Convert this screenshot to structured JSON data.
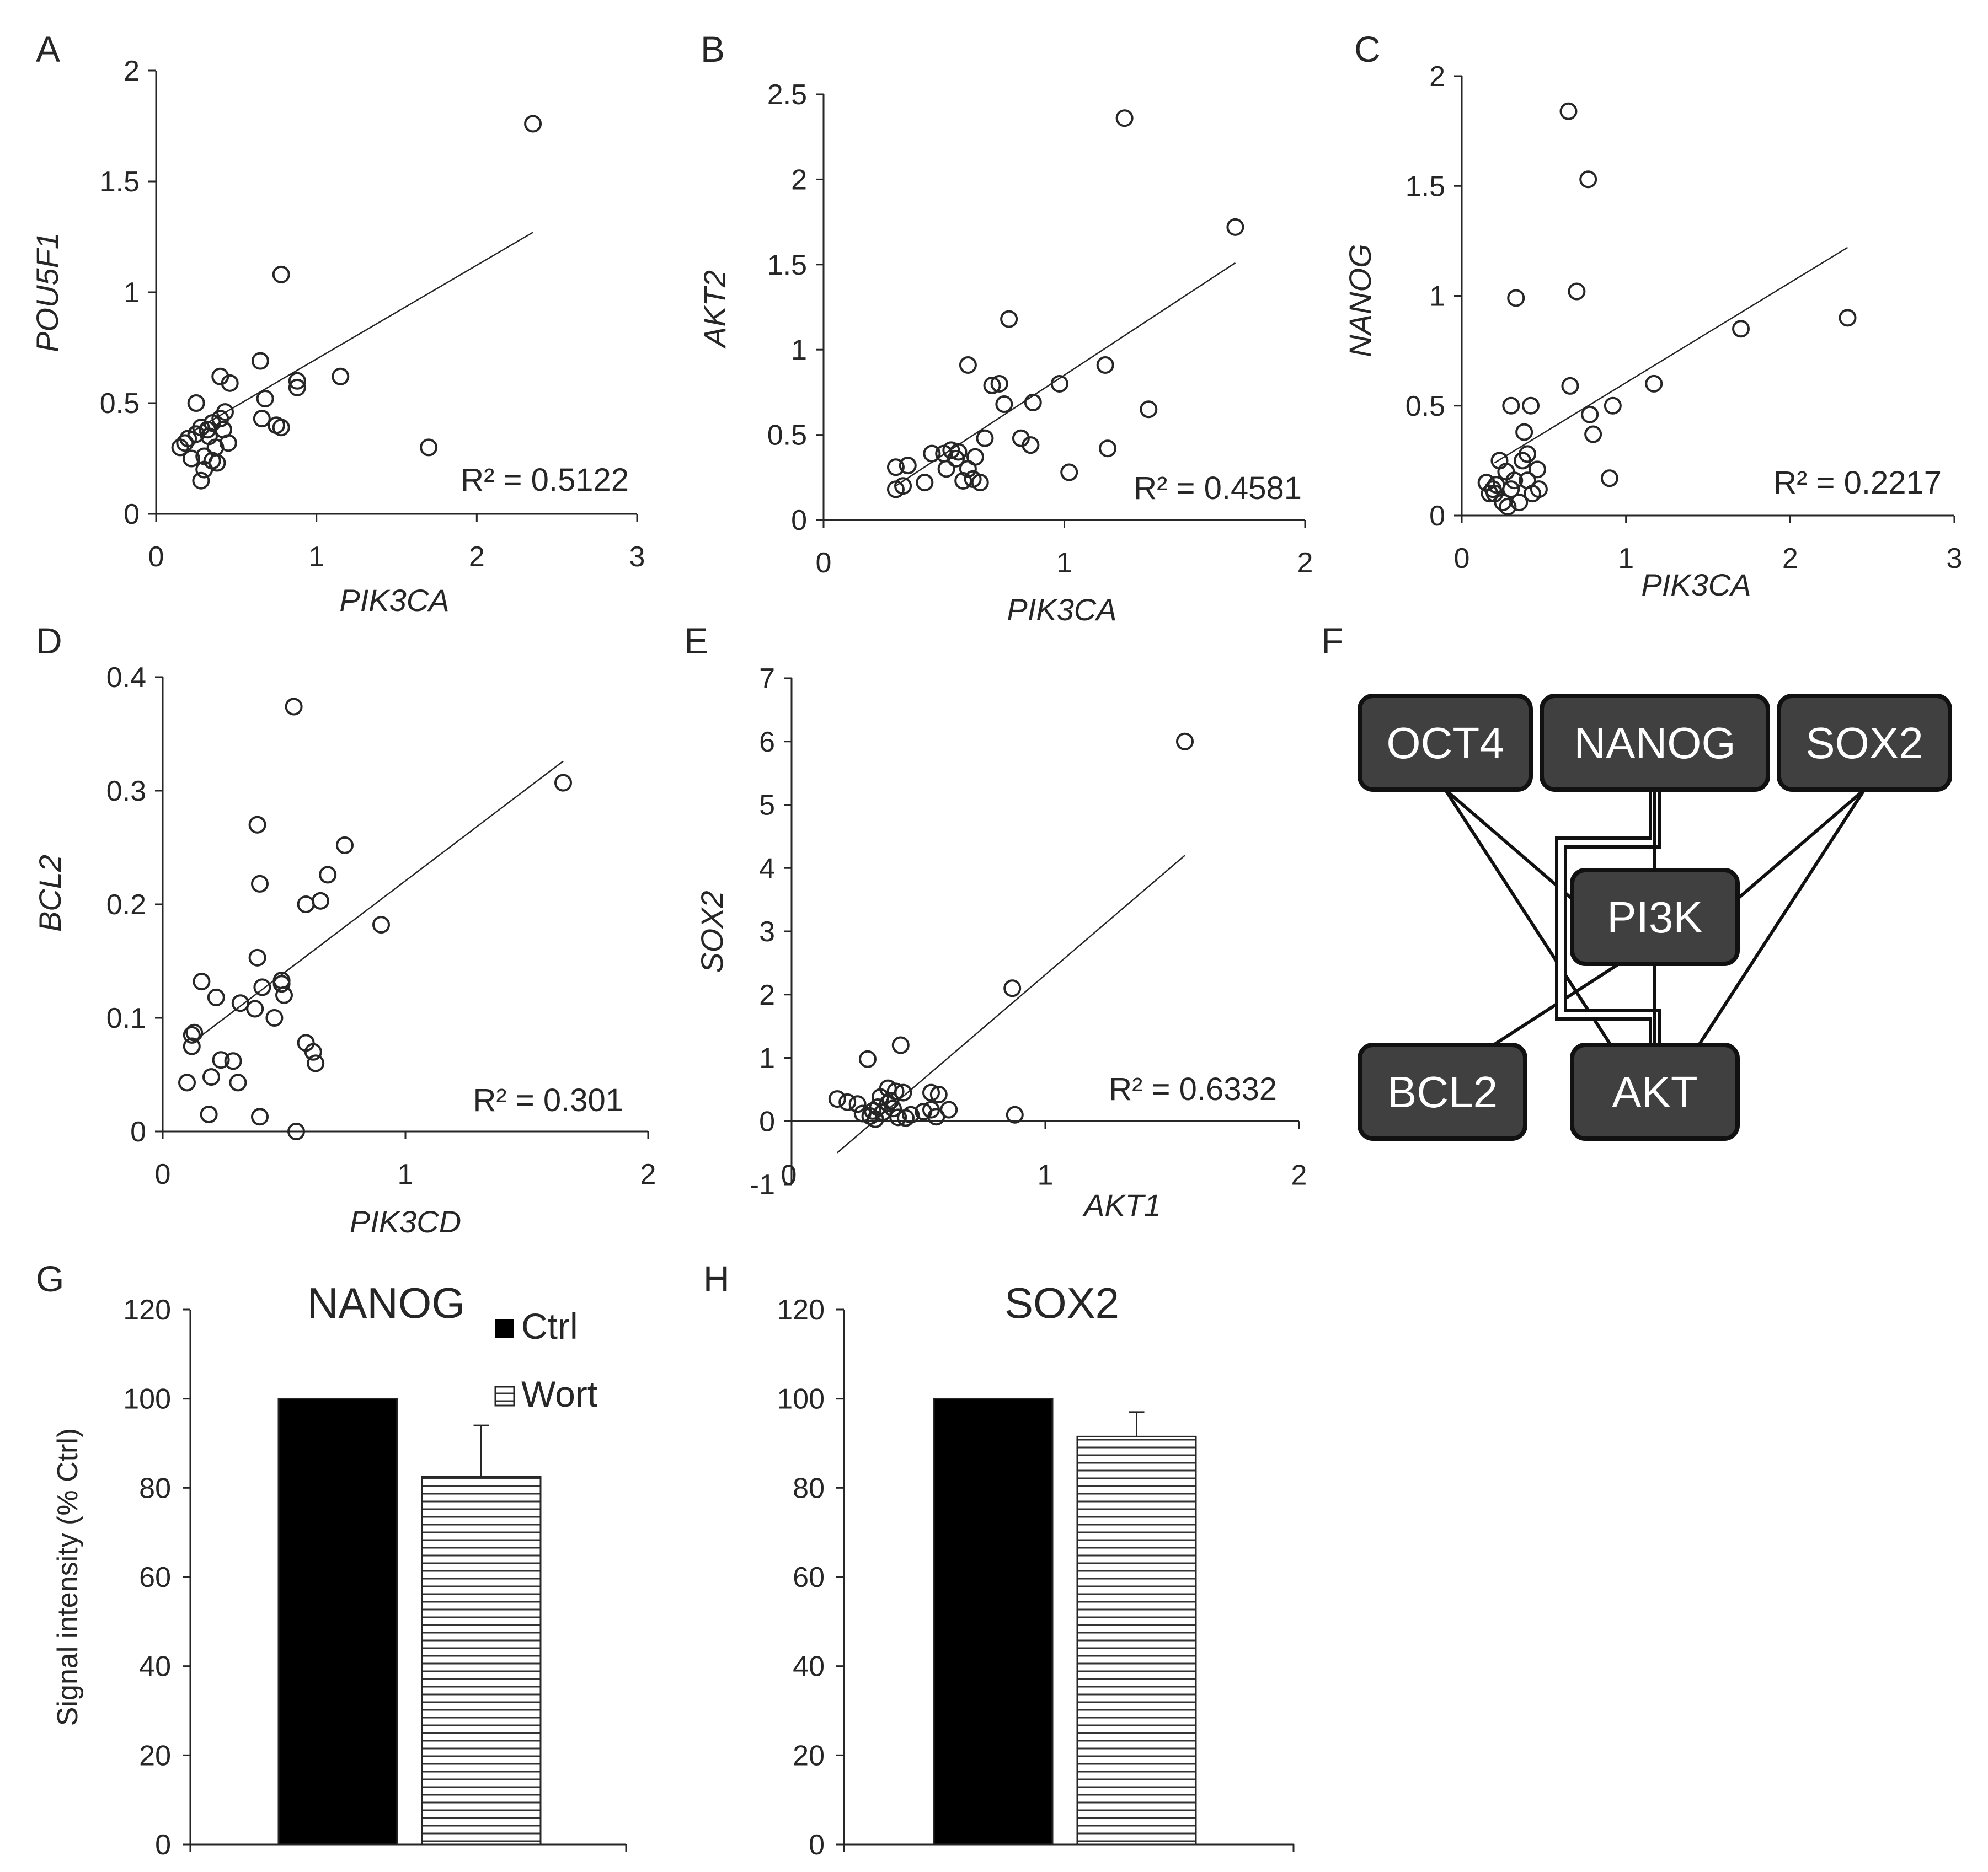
{
  "panels": {
    "A": {
      "letter": "A"
    },
    "B": {
      "letter": "B"
    },
    "C": {
      "letter": "C"
    },
    "D": {
      "letter": "D"
    },
    "E": {
      "letter": "E"
    },
    "F": {
      "letter": "F"
    },
    "G": {
      "letter": "G"
    },
    "H": {
      "letter": "H"
    }
  },
  "colors": {
    "ink": "#262626",
    "node_fill": "#404040",
    "bar_ctrl": "#000000",
    "bar_wort_stripes": "#333333"
  },
  "chart_data": [
    {
      "panel": "A",
      "type": "scatter",
      "xlabel": "PIK3CA",
      "ylabel": "POU5F1",
      "xlim": [
        0,
        3
      ],
      "ylim": [
        0,
        2
      ],
      "xticks": [
        "0",
        "1",
        "2",
        "3"
      ],
      "yticks": [
        "0",
        "0.5",
        "1",
        "1.5",
        "2"
      ],
      "r2": "R² = 0.5122",
      "trendline": [
        [
          0.2,
          0.36
        ],
        [
          2.35,
          1.27
        ]
      ],
      "points": [
        [
          0.15,
          0.3
        ],
        [
          0.18,
          0.32
        ],
        [
          0.2,
          0.34
        ],
        [
          0.22,
          0.25
        ],
        [
          0.25,
          0.5
        ],
        [
          0.25,
          0.36
        ],
        [
          0.28,
          0.39
        ],
        [
          0.28,
          0.15
        ],
        [
          0.3,
          0.2
        ],
        [
          0.3,
          0.26
        ],
        [
          0.32,
          0.38
        ],
        [
          0.33,
          0.35
        ],
        [
          0.35,
          0.41
        ],
        [
          0.35,
          0.24
        ],
        [
          0.37,
          0.3
        ],
        [
          0.38,
          0.23
        ],
        [
          0.4,
          0.43
        ],
        [
          0.4,
          0.62
        ],
        [
          0.42,
          0.38
        ],
        [
          0.43,
          0.46
        ],
        [
          0.45,
          0.32
        ],
        [
          0.46,
          0.59
        ],
        [
          0.65,
          0.69
        ],
        [
          0.66,
          0.43
        ],
        [
          0.68,
          0.52
        ],
        [
          0.75,
          0.4
        ],
        [
          0.78,
          0.39
        ],
        [
          0.78,
          1.08
        ],
        [
          0.88,
          0.57
        ],
        [
          0.88,
          0.6
        ],
        [
          1.15,
          0.62
        ],
        [
          1.7,
          0.3
        ],
        [
          2.35,
          1.76
        ]
      ]
    },
    {
      "panel": "B",
      "type": "scatter",
      "xlabel": "PIK3CA",
      "ylabel": "AKT2",
      "xlim": [
        0,
        2
      ],
      "ylim": [
        0,
        2.5
      ],
      "xticks": [
        "0",
        "1",
        "2"
      ],
      "yticks": [
        "0",
        "0.5",
        "1",
        "1.5",
        "2",
        "2.5"
      ],
      "r2": "R² = 0.4581",
      "trendline": [
        [
          0.3,
          0.2
        ],
        [
          1.71,
          1.51
        ]
      ],
      "points": [
        [
          0.3,
          0.18
        ],
        [
          0.3,
          0.31
        ],
        [
          0.33,
          0.2
        ],
        [
          0.35,
          0.32
        ],
        [
          0.42,
          0.22
        ],
        [
          0.45,
          0.39
        ],
        [
          0.5,
          0.39
        ],
        [
          0.51,
          0.3
        ],
        [
          0.53,
          0.41
        ],
        [
          0.55,
          0.36
        ],
        [
          0.56,
          0.4
        ],
        [
          0.58,
          0.23
        ],
        [
          0.6,
          0.91
        ],
        [
          0.6,
          0.3
        ],
        [
          0.62,
          0.24
        ],
        [
          0.63,
          0.37
        ],
        [
          0.65,
          0.22
        ],
        [
          0.67,
          0.48
        ],
        [
          0.7,
          0.79
        ],
        [
          0.73,
          0.8
        ],
        [
          0.75,
          0.68
        ],
        [
          0.77,
          1.18
        ],
        [
          0.82,
          0.48
        ],
        [
          0.86,
          0.44
        ],
        [
          0.87,
          0.69
        ],
        [
          0.98,
          0.8
        ],
        [
          1.02,
          0.28
        ],
        [
          1.17,
          0.91
        ],
        [
          1.18,
          0.42
        ],
        [
          1.25,
          2.36
        ],
        [
          1.35,
          0.65
        ],
        [
          1.71,
          1.72
        ]
      ]
    },
    {
      "panel": "C",
      "type": "scatter",
      "xlabel": "PIK3CA",
      "ylabel": "NANOG",
      "xlim": [
        0,
        3
      ],
      "ylim": [
        0,
        2
      ],
      "xticks": [
        "0",
        "1",
        "2",
        "3"
      ],
      "yticks": [
        "0",
        "0.5",
        "1",
        "1.5",
        "2"
      ],
      "r2": "R² = 0.2217",
      "trendline": [
        [
          0.2,
          0.24
        ],
        [
          2.35,
          1.22
        ]
      ],
      "points": [
        [
          0.15,
          0.15
        ],
        [
          0.17,
          0.1
        ],
        [
          0.19,
          0.12
        ],
        [
          0.2,
          0.1
        ],
        [
          0.21,
          0.14
        ],
        [
          0.23,
          0.25
        ],
        [
          0.25,
          0.06
        ],
        [
          0.27,
          0.2
        ],
        [
          0.28,
          0.04
        ],
        [
          0.3,
          0.5
        ],
        [
          0.3,
          0.12
        ],
        [
          0.32,
          0.16
        ],
        [
          0.33,
          0.99
        ],
        [
          0.35,
          0.06
        ],
        [
          0.37,
          0.25
        ],
        [
          0.38,
          0.38
        ],
        [
          0.4,
          0.28
        ],
        [
          0.4,
          0.16
        ],
        [
          0.42,
          0.5
        ],
        [
          0.43,
          0.1
        ],
        [
          0.46,
          0.21
        ],
        [
          0.47,
          0.12
        ],
        [
          0.65,
          1.84
        ],
        [
          0.66,
          0.59
        ],
        [
          0.7,
          1.02
        ],
        [
          0.77,
          1.53
        ],
        [
          0.78,
          0.46
        ],
        [
          0.8,
          0.37
        ],
        [
          0.9,
          0.17
        ],
        [
          0.92,
          0.5
        ],
        [
          1.17,
          0.6
        ],
        [
          1.7,
          0.85
        ],
        [
          2.35,
          0.9
        ]
      ]
    },
    {
      "panel": "D",
      "type": "scatter",
      "xlabel": "PIK3CD",
      "ylabel": "BCL2",
      "xlim": [
        0,
        2
      ],
      "ylim": [
        0,
        0.4
      ],
      "xticks": [
        "0",
        "1",
        "2"
      ],
      "yticks": [
        "0",
        "0.1",
        "0.2",
        "0.3",
        "0.4"
      ],
      "r2": "R² = 0.301",
      "trendline": [
        [
          0.12,
          0.078
        ],
        [
          1.65,
          0.326
        ]
      ],
      "points": [
        [
          0.1,
          0.043
        ],
        [
          0.12,
          0.085
        ],
        [
          0.12,
          0.075
        ],
        [
          0.13,
          0.087
        ],
        [
          0.16,
          0.132
        ],
        [
          0.19,
          0.015
        ],
        [
          0.2,
          0.048
        ],
        [
          0.22,
          0.118
        ],
        [
          0.24,
          0.063
        ],
        [
          0.29,
          0.062
        ],
        [
          0.31,
          0.043
        ],
        [
          0.32,
          0.113
        ],
        [
          0.38,
          0.108
        ],
        [
          0.39,
          0.153
        ],
        [
          0.39,
          0.27
        ],
        [
          0.4,
          0.013
        ],
        [
          0.4,
          0.218
        ],
        [
          0.41,
          0.127
        ],
        [
          0.46,
          0.1
        ],
        [
          0.49,
          0.133
        ],
        [
          0.49,
          0.13
        ],
        [
          0.5,
          0.12
        ],
        [
          0.54,
          0.374
        ],
        [
          0.55,
          0.0
        ],
        [
          0.59,
          0.078
        ],
        [
          0.59,
          0.2
        ],
        [
          0.62,
          0.07
        ],
        [
          0.63,
          0.06
        ],
        [
          0.65,
          0.203
        ],
        [
          0.68,
          0.226
        ],
        [
          0.75,
          0.252
        ],
        [
          0.9,
          0.182
        ],
        [
          1.65,
          0.307
        ]
      ]
    },
    {
      "panel": "E",
      "type": "scatter",
      "xlabel": "AKT1",
      "ylabel": "SOX2",
      "xlim": [
        0,
        2
      ],
      "ylim": [
        -1,
        7
      ],
      "xticks": [
        "0",
        "1",
        "2"
      ],
      "yticks": [
        "-1",
        "0",
        "1",
        "2",
        "3",
        "4",
        "5",
        "6",
        "7"
      ],
      "r2": "R² = 0.6332",
      "trendline": [
        [
          0.18,
          -0.5
        ],
        [
          1.55,
          4.2
        ]
      ],
      "points": [
        [
          0.18,
          0.35
        ],
        [
          0.22,
          0.3
        ],
        [
          0.26,
          0.27
        ],
        [
          0.28,
          0.12
        ],
        [
          0.3,
          0.98
        ],
        [
          0.31,
          0.08
        ],
        [
          0.32,
          0.16
        ],
        [
          0.33,
          0.03
        ],
        [
          0.34,
          0.22
        ],
        [
          0.35,
          0.38
        ],
        [
          0.36,
          0.14
        ],
        [
          0.38,
          0.52
        ],
        [
          0.38,
          0.28
        ],
        [
          0.39,
          0.32
        ],
        [
          0.4,
          0.2
        ],
        [
          0.41,
          0.47
        ],
        [
          0.42,
          0.06
        ],
        [
          0.43,
          1.2
        ],
        [
          0.44,
          0.45
        ],
        [
          0.45,
          0.05
        ],
        [
          0.47,
          0.1
        ],
        [
          0.52,
          0.15
        ],
        [
          0.55,
          0.45
        ],
        [
          0.55,
          0.18
        ],
        [
          0.57,
          0.07
        ],
        [
          0.58,
          0.42
        ],
        [
          0.62,
          0.18
        ],
        [
          0.87,
          2.1
        ],
        [
          0.88,
          0.1
        ],
        [
          1.55,
          6.0
        ]
      ]
    },
    {
      "panel": "G",
      "type": "bar",
      "title": "NANOG",
      "ylabel": "Signal intensity (% Ctrl)",
      "ylim": [
        0,
        120
      ],
      "yticks": [
        "0",
        "20",
        "40",
        "60",
        "80",
        "100",
        "120"
      ],
      "series": [
        {
          "name": "Ctrl",
          "value": 100
        },
        {
          "name": "Wort",
          "value": 82.5,
          "error": 11.5
        }
      ],
      "legend": [
        "Ctrl",
        "Wort"
      ]
    },
    {
      "panel": "H",
      "type": "bar",
      "title": "SOX2",
      "ylabel": "",
      "ylim": [
        0,
        120
      ],
      "yticks": [
        "0",
        "20",
        "40",
        "60",
        "80",
        "100",
        "120"
      ],
      "series": [
        {
          "name": "Ctrl",
          "value": 100
        },
        {
          "name": "Wort",
          "value": 91.5,
          "error": 5.5
        }
      ]
    }
  ],
  "diagram": {
    "nodes": [
      {
        "id": "oct4",
        "label": "OCT4"
      },
      {
        "id": "nanog",
        "label": "NANOG"
      },
      {
        "id": "sox2",
        "label": "SOX2"
      },
      {
        "id": "pi3k",
        "label": "PI3K"
      },
      {
        "id": "bcl2",
        "label": "BCL2"
      },
      {
        "id": "akt",
        "label": "AKT"
      }
    ],
    "edges": [
      [
        "oct4",
        "pi3k"
      ],
      [
        "oct4",
        "akt"
      ],
      [
        "sox2",
        "pi3k"
      ],
      [
        "sox2",
        "akt"
      ],
      [
        "nanog",
        "pi3k"
      ],
      [
        "nanog",
        "akt"
      ],
      [
        "pi3k",
        "bcl2"
      ],
      [
        "pi3k",
        "akt"
      ]
    ]
  }
}
